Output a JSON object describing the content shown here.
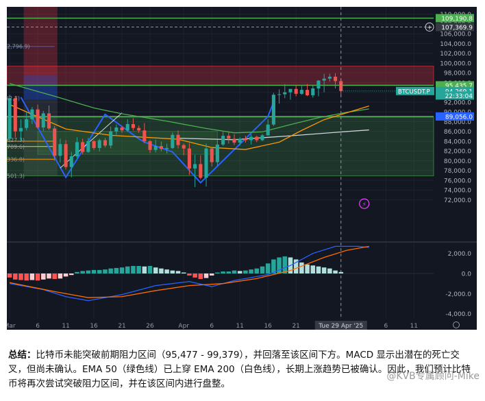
{
  "chart_data": {
    "type": "candlestick",
    "symbol": "BTCUSDT.P",
    "price_axis": {
      "ylim": [
        63500,
        111500
      ],
      "ticks": [
        110000,
        108000,
        106000,
        104000,
        102000,
        100000,
        98000,
        96000,
        94000,
        92000,
        90000,
        88000,
        86000,
        84000,
        82000,
        80000,
        78000,
        76000,
        74000,
        72000
      ],
      "tick_labels": [
        "110,000.0",
        "108,000.0",
        "106,000.0",
        "104,000.0",
        "102,000.0",
        "100,000.0",
        "98,000.0",
        "96,000.0",
        "94,000.0",
        "92,000.0",
        "90,000.0",
        "88,000.0",
        "86,000.0",
        "84,000.0",
        "82,000.0",
        "80,000.0",
        "78,000.0",
        "76,000.0",
        "74,000.0",
        "72,000.0"
      ]
    },
    "macd_axis": {
      "ylim": [
        -4500,
        3000
      ],
      "ticks": [
        2000,
        0,
        -2000,
        -4000
      ],
      "tick_labels": [
        "2,000.0",
        "0.0",
        "-2,000.0",
        "-4,000.0"
      ]
    },
    "x_axis": {
      "labels": [
        "Mar",
        "6",
        "11",
        "16",
        "21",
        "26",
        "Apr",
        "6",
        "11",
        "16",
        "21",
        "Tue 29 Apr '25",
        "6",
        "11"
      ],
      "label_days": [
        0,
        5,
        10,
        15,
        20,
        25,
        31,
        36,
        41,
        46,
        51,
        59,
        67,
        72
      ],
      "date_range": [
        "2025-03-01",
        "2025-05-14"
      ],
      "crosshair_day": 59,
      "crosshair_label": "Tue 29 Apr '25"
    },
    "price_labels": [
      {
        "text": "109,190.8",
        "price": 109190.8,
        "color": "#4caf50"
      },
      {
        "text": "107,369.9",
        "price": 107369.9,
        "color": "#363a45"
      },
      {
        "text": "95,435.7",
        "price": 95435.7,
        "color": "#4caf50"
      },
      {
        "text": "94,269.1",
        "price": 94269.1,
        "color": "#26a69a"
      },
      {
        "text": "22:33:04",
        "price": 93350,
        "color": "#26a69a"
      },
      {
        "text": "89,056.0",
        "price": 89056.0,
        "color": "#2962ff"
      }
    ],
    "symbol_tag": "BTCUSDT.P",
    "left_partial_labels": [
      {
        "text": "2,796.9)",
        "price": 103400
      },
      {
        "text": "(2,3)",
        "price": 92850
      },
      {
        "text": "627.3)",
        "price": 84250
      },
      {
        "text": "709.6)",
        "price": 82900
      },
      {
        "text": "336.8)",
        "price": 80300
      },
      {
        "text": "501.3)",
        "price": 76900
      }
    ],
    "zones": [
      {
        "name": "resistance",
        "from": 95477,
        "to": 99379,
        "color": "#f23645"
      },
      {
        "name": "support",
        "from": 76900,
        "to": 88900,
        "color": "#4caf50"
      }
    ],
    "horizontal_lines": [
      {
        "price": 109190.8,
        "color": "#4caf50"
      },
      {
        "price": 107369.9,
        "color": "#9598a1",
        "dashed": true
      },
      {
        "price": 95435.7,
        "color": "#4caf50"
      },
      {
        "price": 89056,
        "color": "#4caf50"
      }
    ],
    "candles": [
      {
        "o": 84500,
        "h": 93500,
        "l": 83800,
        "c": 92800
      },
      {
        "o": 92800,
        "h": 93200,
        "l": 84800,
        "c": 86000
      },
      {
        "o": 86000,
        "h": 88500,
        "l": 83900,
        "c": 86700
      },
      {
        "o": 86700,
        "h": 90000,
        "l": 86200,
        "c": 88500
      },
      {
        "o": 88500,
        "h": 91000,
        "l": 87500,
        "c": 90500
      },
      {
        "o": 90500,
        "h": 91500,
        "l": 86500,
        "c": 86800
      },
      {
        "o": 86800,
        "h": 90200,
        "l": 86100,
        "c": 89700
      },
      {
        "o": 89700,
        "h": 91300,
        "l": 86300,
        "c": 86600
      },
      {
        "o": 86600,
        "h": 87100,
        "l": 80000,
        "c": 81000
      },
      {
        "o": 81000,
        "h": 84500,
        "l": 79600,
        "c": 83400
      },
      {
        "o": 83400,
        "h": 84200,
        "l": 78200,
        "c": 78700
      },
      {
        "o": 78700,
        "h": 81800,
        "l": 76600,
        "c": 80900
      },
      {
        "o": 80900,
        "h": 84800,
        "l": 80500,
        "c": 83800
      },
      {
        "o": 83800,
        "h": 84500,
        "l": 81300,
        "c": 81800
      },
      {
        "o": 81800,
        "h": 84700,
        "l": 81600,
        "c": 84000
      },
      {
        "o": 84000,
        "h": 84200,
        "l": 82200,
        "c": 82600
      },
      {
        "o": 82600,
        "h": 84500,
        "l": 81900,
        "c": 84200
      },
      {
        "o": 84200,
        "h": 84700,
        "l": 82700,
        "c": 83100
      },
      {
        "o": 83100,
        "h": 87000,
        "l": 82500,
        "c": 86000
      },
      {
        "o": 86000,
        "h": 87400,
        "l": 85300,
        "c": 86800
      },
      {
        "o": 86800,
        "h": 87100,
        "l": 85700,
        "c": 86200
      },
      {
        "o": 86200,
        "h": 88500,
        "l": 85900,
        "c": 87500
      },
      {
        "o": 87500,
        "h": 88700,
        "l": 86200,
        "c": 86700
      },
      {
        "o": 86700,
        "h": 87200,
        "l": 85700,
        "c": 86200
      },
      {
        "o": 86200,
        "h": 87700,
        "l": 83600,
        "c": 84000
      },
      {
        "o": 84000,
        "h": 84200,
        "l": 81600,
        "c": 82200
      },
      {
        "o": 82200,
        "h": 84300,
        "l": 81700,
        "c": 83000
      },
      {
        "o": 83000,
        "h": 83900,
        "l": 81900,
        "c": 82400
      },
      {
        "o": 82400,
        "h": 83500,
        "l": 81500,
        "c": 82600
      },
      {
        "o": 82600,
        "h": 85800,
        "l": 82400,
        "c": 85300
      },
      {
        "o": 85300,
        "h": 86200,
        "l": 82500,
        "c": 83200
      },
      {
        "o": 83200,
        "h": 83500,
        "l": 81100,
        "c": 82500
      },
      {
        "o": 82500,
        "h": 83600,
        "l": 77100,
        "c": 78400
      },
      {
        "o": 78400,
        "h": 81200,
        "l": 74600,
        "c": 79300
      },
      {
        "o": 79300,
        "h": 81100,
        "l": 76200,
        "c": 76500
      },
      {
        "o": 76500,
        "h": 83500,
        "l": 74700,
        "c": 82500
      },
      {
        "o": 82500,
        "h": 82700,
        "l": 78800,
        "c": 79700
      },
      {
        "o": 79700,
        "h": 84200,
        "l": 78900,
        "c": 83300
      },
      {
        "o": 83300,
        "h": 85900,
        "l": 83000,
        "c": 85100
      },
      {
        "o": 85100,
        "h": 86000,
        "l": 83500,
        "c": 84500
      },
      {
        "o": 84500,
        "h": 85400,
        "l": 83200,
        "c": 83700
      },
      {
        "o": 83700,
        "h": 84800,
        "l": 83100,
        "c": 84500
      },
      {
        "o": 84500,
        "h": 85100,
        "l": 83700,
        "c": 84200
      },
      {
        "o": 84200,
        "h": 85400,
        "l": 83300,
        "c": 84900
      },
      {
        "o": 84900,
        "h": 85100,
        "l": 83800,
        "c": 84200
      },
      {
        "o": 84200,
        "h": 85500,
        "l": 84000,
        "c": 85200
      },
      {
        "o": 85200,
        "h": 88500,
        "l": 85100,
        "c": 87400
      },
      {
        "o": 87400,
        "h": 93900,
        "l": 87100,
        "c": 93500
      },
      {
        "o": 93500,
        "h": 94600,
        "l": 91700,
        "c": 93600
      },
      {
        "o": 93600,
        "h": 95700,
        "l": 92800,
        "c": 94000
      },
      {
        "o": 94000,
        "h": 94500,
        "l": 92500,
        "c": 94700
      },
      {
        "o": 94700,
        "h": 95400,
        "l": 93200,
        "c": 93700
      },
      {
        "o": 93700,
        "h": 95300,
        "l": 93500,
        "c": 94500
      },
      {
        "o": 94500,
        "h": 95700,
        "l": 93200,
        "c": 93400
      },
      {
        "o": 93400,
        "h": 95400,
        "l": 92900,
        "c": 94800
      },
      {
        "o": 94800,
        "h": 96500,
        "l": 93200,
        "c": 96400
      },
      {
        "o": 96400,
        "h": 97800,
        "l": 94000,
        "c": 96800
      },
      {
        "o": 96800,
        "h": 97800,
        "l": 96200,
        "c": 97200
      },
      {
        "o": 97200,
        "h": 97900,
        "l": 94800,
        "c": 96300
      },
      {
        "o": 96300,
        "h": 96800,
        "l": 93400,
        "c": 94269
      }
    ],
    "candle_start_day": 0,
    "ema50": [
      [
        0,
        95800
      ],
      [
        8,
        93200
      ],
      [
        15,
        90800
      ],
      [
        20,
        89600
      ],
      [
        28,
        88100
      ],
      [
        35,
        86600
      ],
      [
        40,
        85700
      ],
      [
        45,
        85900
      ],
      [
        50,
        87400
      ],
      [
        55,
        88800
      ],
      [
        60,
        89900
      ],
      [
        64,
        90600
      ]
    ],
    "ema200": [
      [
        30,
        84600
      ],
      [
        40,
        84300
      ],
      [
        50,
        85100
      ],
      [
        58,
        85800
      ],
      [
        64,
        86300
      ]
    ],
    "ema_orange": [
      [
        0,
        91500
      ],
      [
        10,
        86500
      ],
      [
        18,
        85200
      ],
      [
        30,
        84400
      ],
      [
        36,
        82700
      ],
      [
        42,
        82300
      ],
      [
        48,
        83800
      ],
      [
        52,
        86200
      ],
      [
        56,
        88400
      ],
      [
        60,
        89800
      ],
      [
        64,
        91200
      ]
    ],
    "histogram": [
      -400,
      -600,
      -650,
      -700,
      -650,
      -700,
      -600,
      -500,
      -550,
      -500,
      -300,
      -150,
      150,
      250,
      300,
      350,
      350,
      400,
      500,
      550,
      600,
      700,
      750,
      750,
      700,
      750,
      600,
      500,
      400,
      300,
      250,
      100,
      -200,
      -400,
      -550,
      -450,
      -200,
      100,
      200,
      200,
      300,
      250,
      300,
      400,
      500,
      700,
      1000,
      1400,
      1600,
      1700,
      1600,
      1400,
      1100,
      900,
      800,
      700,
      600,
      500,
      300,
      150
    ],
    "macd_line": [
      [
        0,
        -1000
      ],
      [
        6,
        -1600
      ],
      [
        10,
        -2300
      ],
      [
        14,
        -2700
      ],
      [
        20,
        -2100
      ],
      [
        26,
        -1200
      ],
      [
        32,
        -800
      ],
      [
        36,
        -1300
      ],
      [
        40,
        -700
      ],
      [
        46,
        -100
      ],
      [
        50,
        800
      ],
      [
        54,
        2000
      ],
      [
        58,
        2700
      ],
      [
        62,
        2700
      ],
      [
        64,
        2600
      ]
    ],
    "signal_line": [
      [
        0,
        -900
      ],
      [
        8,
        -1800
      ],
      [
        14,
        -2400
      ],
      [
        20,
        -2300
      ],
      [
        26,
        -1700
      ],
      [
        32,
        -1200
      ],
      [
        38,
        -1000
      ],
      [
        44,
        -500
      ],
      [
        50,
        300
      ],
      [
        56,
        1600
      ],
      [
        60,
        2300
      ],
      [
        64,
        2700
      ]
    ]
  },
  "summary": {
    "label": "总结：",
    "text": "比特币未能突破前期阻力区间（95,477 - 99,379），并回落至该区间下方。MACD 显示出潜在的死亡交叉，但尚未确认。EMA 50（绿色线）已上穿 EMA 200（白色线），长期上涨趋势已被确认。因此，我们预计比特币将再次尝试突破阻力区间，并在该区间内进行盘整。"
  },
  "watermark": "@KVB专属顾问-Mike"
}
